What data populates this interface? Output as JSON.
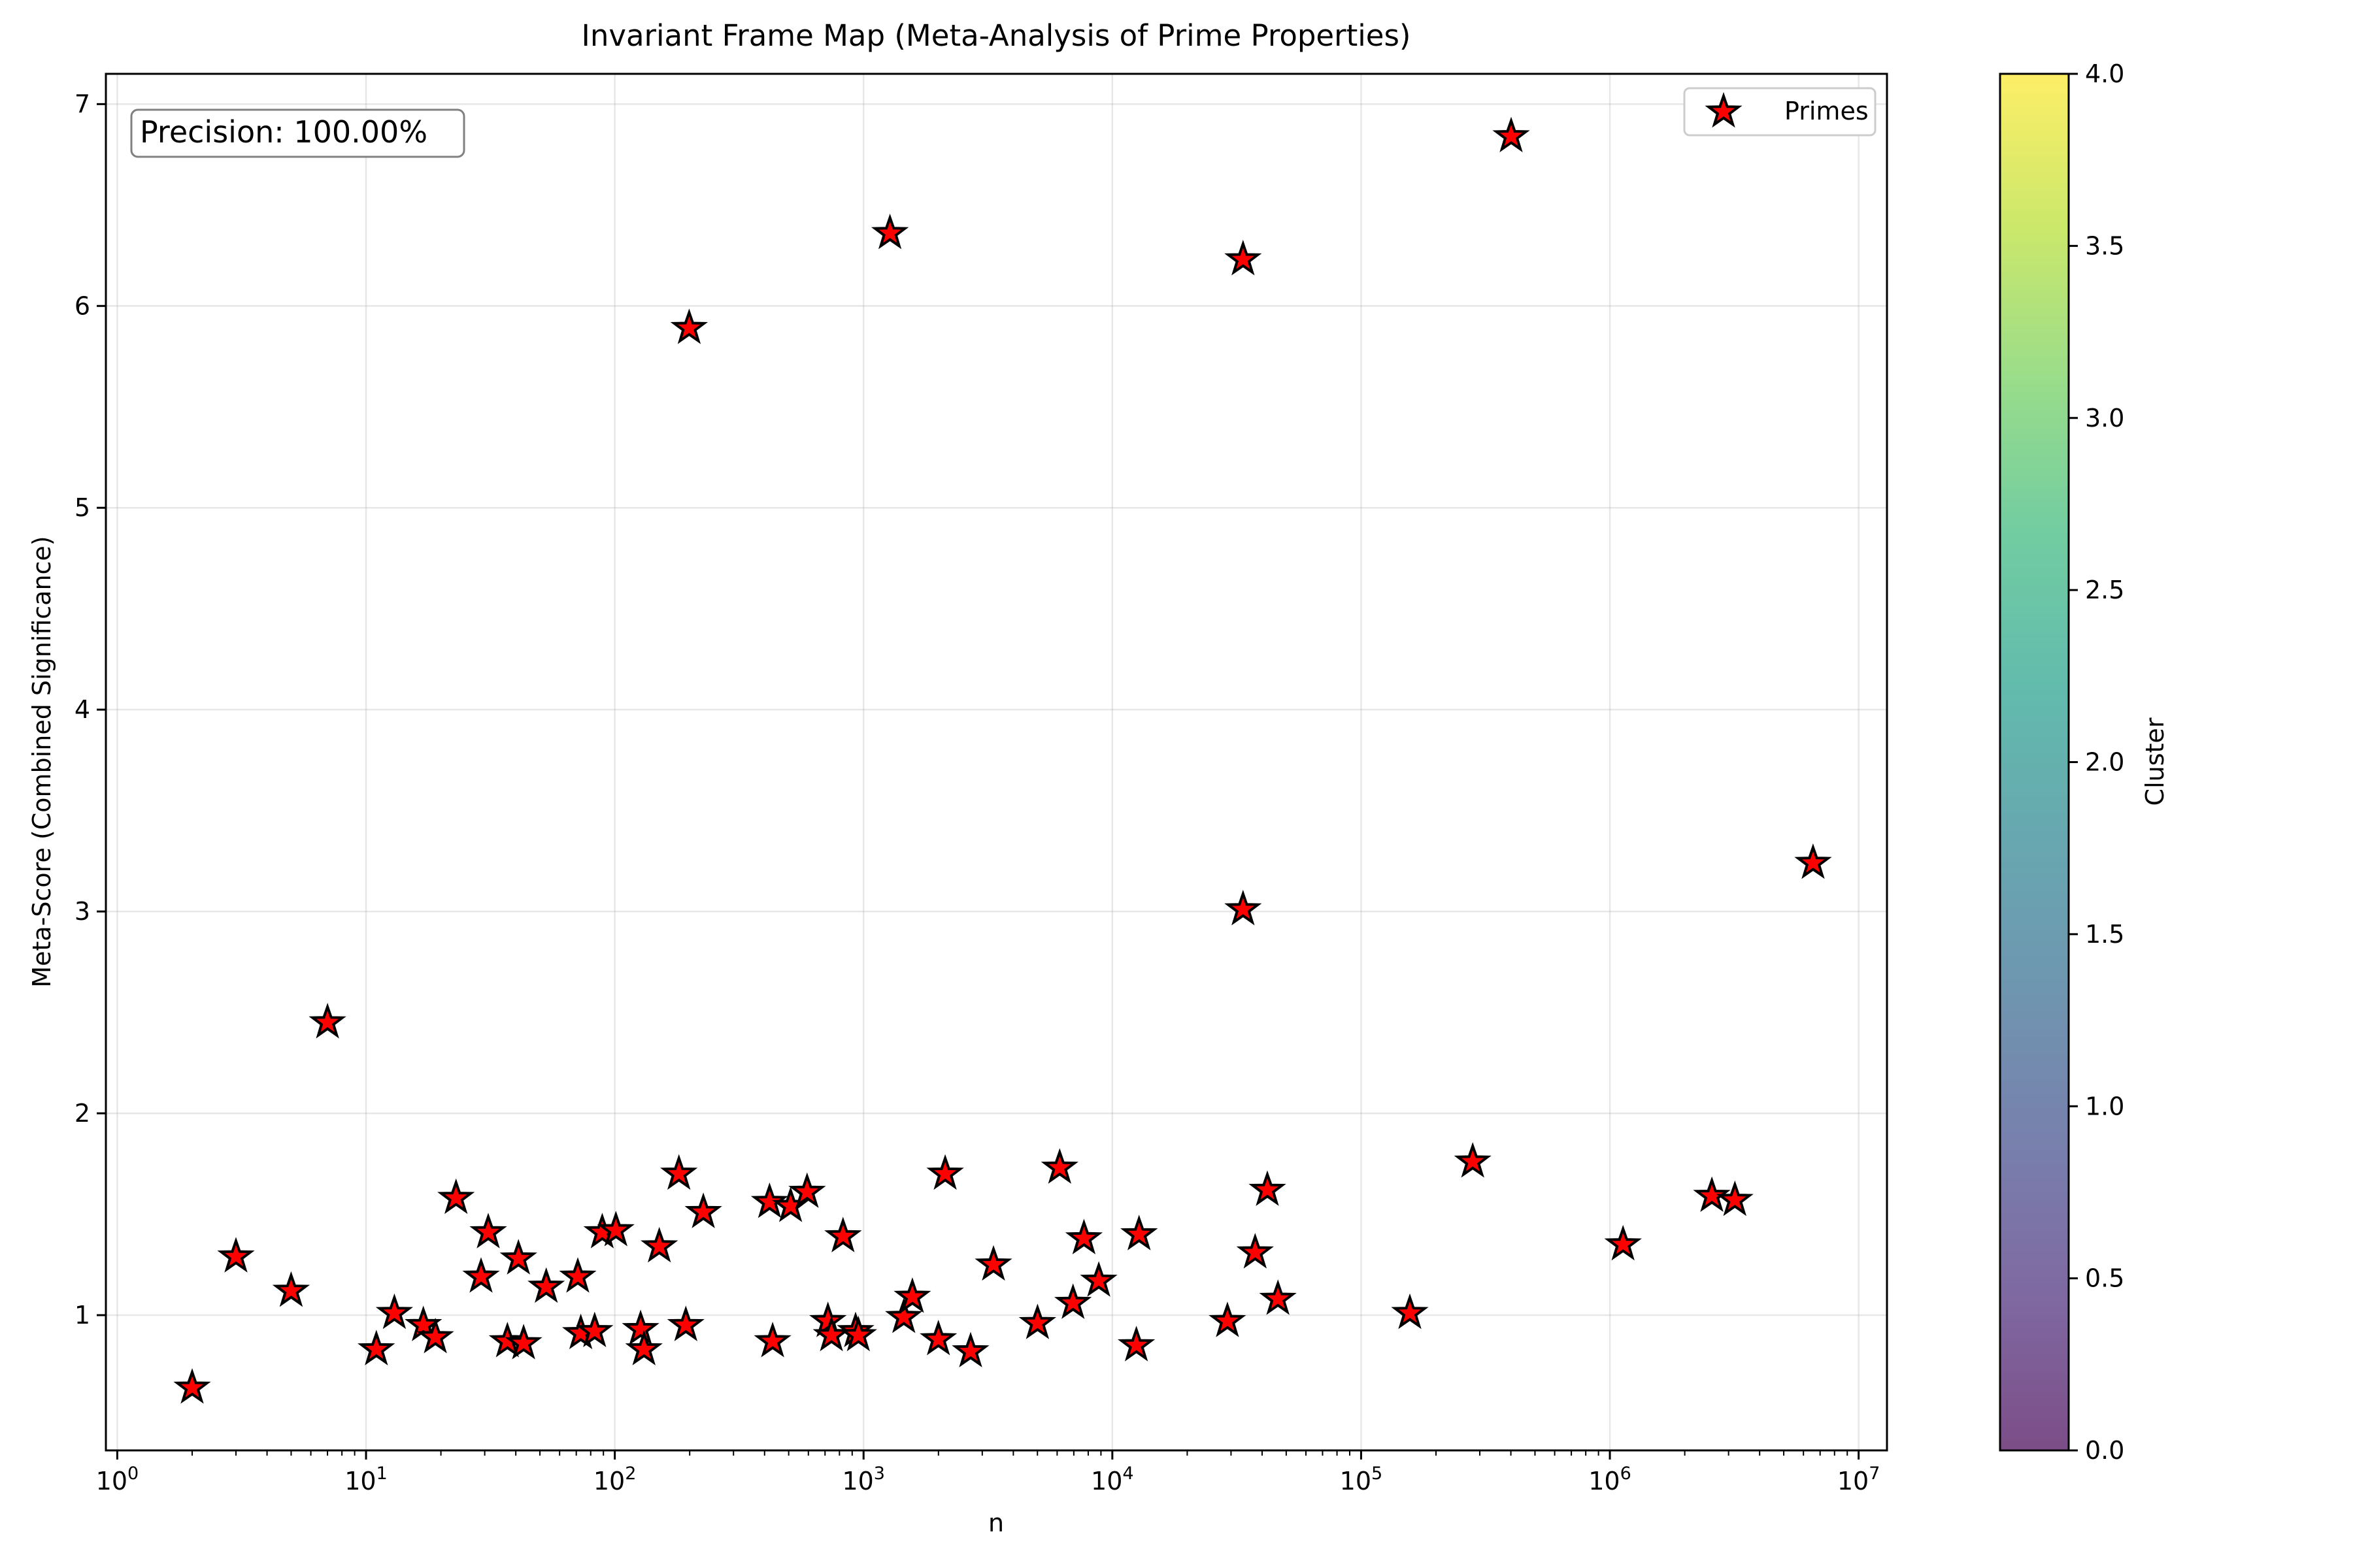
{
  "chart_data": {
    "type": "scatter",
    "title": "Invariant Frame Map (Meta-Analysis of Prime Properties)",
    "xlabel": "n",
    "ylabel": "Meta-Score (Combined Significance)",
    "x_scale": "log",
    "xlim": [
      0.9,
      13000000
    ],
    "ylim": [
      0.33,
      7.15
    ],
    "x_ticks": [
      {
        "value": 1,
        "base": "10",
        "exp": "0"
      },
      {
        "value": 10,
        "base": "10",
        "exp": "1"
      },
      {
        "value": 100,
        "base": "10",
        "exp": "2"
      },
      {
        "value": 1000,
        "base": "10",
        "exp": "3"
      },
      {
        "value": 10000,
        "base": "10",
        "exp": "4"
      },
      {
        "value": 100000,
        "base": "10",
        "exp": "5"
      },
      {
        "value": 1000000,
        "base": "10",
        "exp": "6"
      },
      {
        "value": 10000000,
        "base": "10",
        "exp": "7"
      }
    ],
    "y_ticks": [
      {
        "value": 1,
        "label": "1"
      },
      {
        "value": 2,
        "label": "2"
      },
      {
        "value": 3,
        "label": "3"
      },
      {
        "value": 4,
        "label": "4"
      },
      {
        "value": 5,
        "label": "5"
      },
      {
        "value": 6,
        "label": "6"
      },
      {
        "value": 7,
        "label": "7"
      }
    ],
    "grid": true,
    "legend": {
      "position": "top-right",
      "entries": [
        "Primes"
      ]
    },
    "annotation": "Precision: 100.00%",
    "marker": {
      "shape": "star",
      "fill": "#ff0000",
      "edge": "#000000"
    },
    "series": [
      {
        "name": "Primes",
        "points": [
          [
            2,
            0.64
          ],
          [
            3,
            1.29
          ],
          [
            5,
            1.12
          ],
          [
            7,
            2.45
          ],
          [
            11,
            0.83
          ],
          [
            13,
            1.01
          ],
          [
            17,
            0.95
          ],
          [
            19,
            0.89
          ],
          [
            23,
            1.58
          ],
          [
            29,
            1.19
          ],
          [
            31,
            1.41
          ],
          [
            37,
            0.87
          ],
          [
            41,
            1.28
          ],
          [
            43,
            0.86
          ],
          [
            53,
            1.14
          ],
          [
            71,
            1.19
          ],
          [
            73,
            0.91
          ],
          [
            83,
            0.92
          ],
          [
            89,
            1.41
          ],
          [
            101,
            1.42
          ],
          [
            127,
            0.93
          ],
          [
            131,
            0.83
          ],
          [
            151,
            1.34
          ],
          [
            181,
            1.7
          ],
          [
            193,
            0.95
          ],
          [
            199,
            5.89
          ],
          [
            227,
            1.51
          ],
          [
            419,
            1.56
          ],
          [
            431,
            0.87
          ],
          [
            509,
            1.54
          ],
          [
            593,
            1.61
          ],
          [
            719,
            0.97
          ],
          [
            743,
            0.9
          ],
          [
            827,
            1.39
          ],
          [
            929,
            0.92
          ],
          [
            953,
            0.9
          ],
          [
            1277,
            6.36
          ],
          [
            1451,
            0.99
          ],
          [
            1571,
            1.09
          ],
          [
            1999,
            0.88
          ],
          [
            2129,
            1.7
          ],
          [
            2693,
            0.82
          ],
          [
            3329,
            1.25
          ],
          [
            5003,
            0.96
          ],
          [
            6143,
            1.73
          ],
          [
            6949,
            1.06
          ],
          [
            7691,
            1.38
          ],
          [
            8819,
            1.17
          ],
          [
            12491,
            0.85
          ],
          [
            12809,
            1.4
          ],
          [
            29009,
            0.97
          ],
          [
            33529,
            6.23
          ],
          [
            33529,
            3.01
          ],
          [
            37501,
            1.31
          ],
          [
            41999,
            1.62
          ],
          [
            46301,
            1.08
          ],
          [
            157007,
            1.01
          ],
          [
            281003,
            1.76
          ],
          [
            401003,
            6.84
          ],
          [
            1130003,
            1.35
          ],
          [
            2570003,
            1.59
          ],
          [
            3180001,
            1.57
          ],
          [
            6560003,
            3.24
          ]
        ]
      }
    ]
  },
  "colorbar": {
    "label": "Cluster",
    "range": [
      0,
      4
    ],
    "ticks": [
      "0.0",
      "0.5",
      "1.0",
      "1.5",
      "2.0",
      "2.5",
      "3.0",
      "3.5",
      "4.0"
    ],
    "colors": [
      "#440154",
      "#482878",
      "#3e4989",
      "#31688e",
      "#26828e",
      "#1f9e89",
      "#35b779",
      "#6ece58",
      "#b5de2b",
      "#fde725"
    ],
    "alpha": 0.7
  }
}
